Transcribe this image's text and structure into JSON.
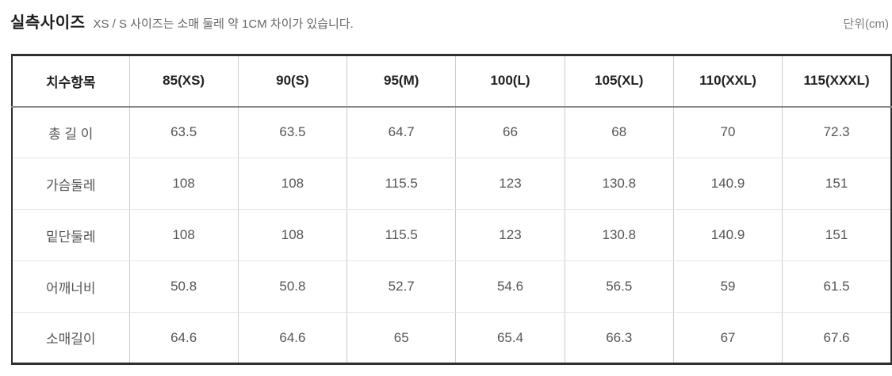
{
  "page": {
    "title": "실측사이즈",
    "subtitle": "XS / S 사이즈는 소매 둘레 약 1CM 차이가 있습니다.",
    "unit_label": "단위(cm)"
  },
  "colors": {
    "outer_border": "#2e2e2e",
    "header_divider": "#8a8a8a",
    "grid_vertical": "#cccccc",
    "grid_horizontal": "#e5e5e5",
    "title_text": "#1c1c1c",
    "cell_text": "#555555"
  },
  "chart_data": {
    "type": "table",
    "title": "실측사이즈",
    "subtitle": "XS / S 사이즈는 소매 둘레 약 1CM 차이가 있습니다.",
    "unit": "단위(cm)",
    "columns": [
      "치수항목",
      "85(XS)",
      "90(S)",
      "95(M)",
      "100(L)",
      "105(XL)",
      "110(XXL)",
      "115(XXXL)"
    ],
    "rows": [
      {
        "label": "총 길 이",
        "values": [
          "63.5",
          "63.5",
          "64.7",
          "66",
          "68",
          "70",
          "72.3"
        ]
      },
      {
        "label": "가슴둘레",
        "values": [
          "108",
          "108",
          "115.5",
          "123",
          "130.8",
          "140.9",
          "151"
        ]
      },
      {
        "label": "밑단둘레",
        "values": [
          "108",
          "108",
          "115.5",
          "123",
          "130.8",
          "140.9",
          "151"
        ]
      },
      {
        "label": "어깨너비",
        "values": [
          "50.8",
          "50.8",
          "52.7",
          "54.6",
          "56.5",
          "59",
          "61.5"
        ]
      },
      {
        "label": "소매길이",
        "values": [
          "64.6",
          "64.6",
          "65",
          "65.4",
          "66.3",
          "67",
          "67.6"
        ]
      }
    ]
  }
}
